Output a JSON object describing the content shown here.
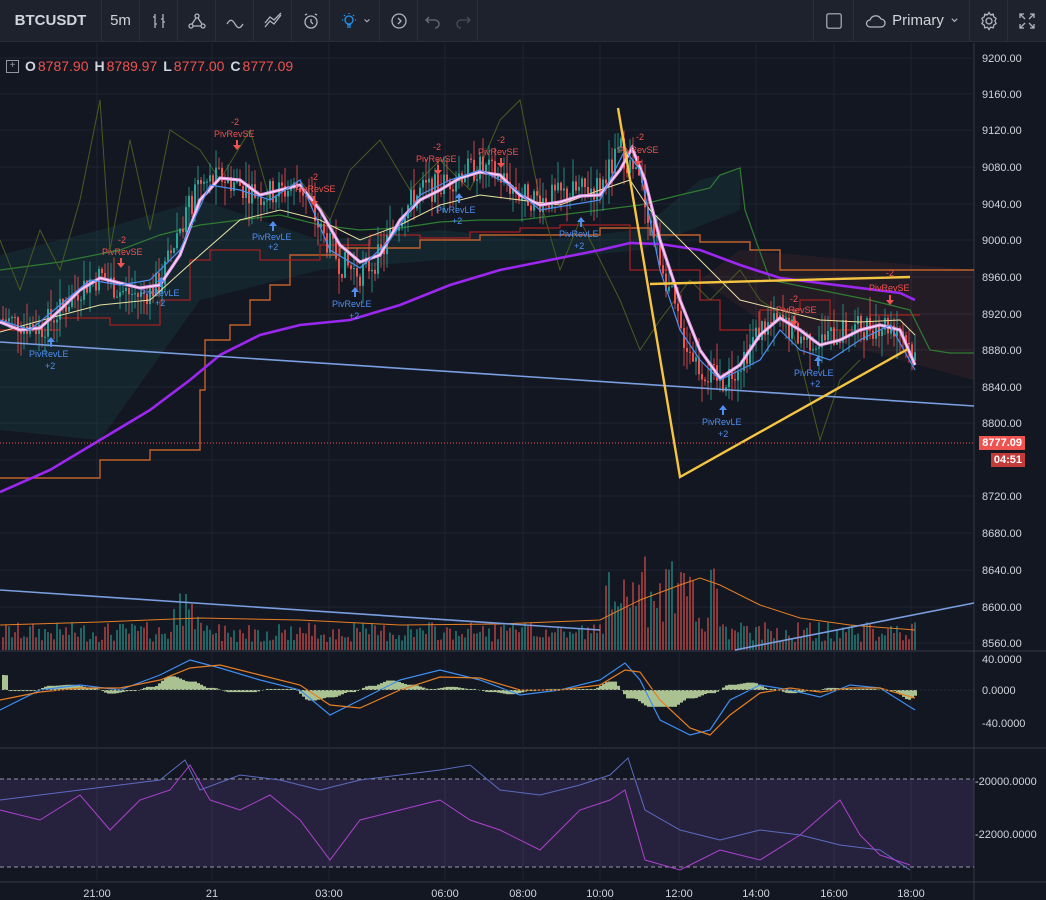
{
  "toolbar": {
    "symbol": "BTCUSDT",
    "interval": "5m",
    "layout_label": "Primary",
    "icons": [
      "compare-icon",
      "bar-style-icon",
      "indicators-icon",
      "templates-icon",
      "alert-icon",
      "ideas-icon",
      "replay-icon",
      "undo-icon",
      "redo-icon",
      "layout-square-icon",
      "cloud-icon",
      "settings-icon",
      "fullscreen-icon"
    ]
  },
  "legend": {
    "o_label": "O",
    "o": "8787.90",
    "h_label": "H",
    "h": "8789.97",
    "l_label": "L",
    "l": "8777.00",
    "c_label": "C",
    "c": "8777.09"
  },
  "last_price": "8777.09",
  "countdown": "04:51",
  "colors": {
    "accent_red": "#ef5350",
    "accent_green": "#26a69a",
    "background": "#131722"
  },
  "chart_data": {
    "type": "line",
    "title": "",
    "price_axis": [
      "9200.00",
      "9160.00",
      "9120.00",
      "9080.00",
      "9040.00",
      "9000.00",
      "8960.00",
      "8920.00",
      "8880.00",
      "8840.00",
      "8800.00",
      "8720.00",
      "8680.00",
      "8640.00",
      "8600.00",
      "8560.00"
    ],
    "macd_axis": [
      "40.0000",
      "0.0000",
      "-40.0000"
    ],
    "osc_axis": [
      "-20000.0000",
      "-22000.0000"
    ],
    "time_axis": [
      "21:00",
      "21",
      "03:00",
      "06:00",
      "08:00",
      "10:00",
      "12:00",
      "14:00",
      "16:00",
      "18:00"
    ],
    "ylim": [
      8540,
      9210
    ],
    "series": [
      {
        "values": [
          [
            0,
            8915
          ],
          [
            20,
            8910
          ],
          [
            40,
            8905
          ],
          [
            60,
            8925
          ],
          [
            80,
            8950
          ],
          [
            100,
            8962
          ],
          [
            120,
            8945
          ],
          [
            140,
            8940
          ],
          [
            160,
            8955
          ],
          [
            180,
            9020
          ],
          [
            200,
            9060
          ],
          [
            220,
            9070
          ],
          [
            240,
            9060
          ],
          [
            260,
            9050
          ],
          [
            280,
            9055
          ],
          [
            300,
            9060
          ],
          [
            320,
            9010
          ],
          [
            340,
            8975
          ],
          [
            360,
            8965
          ],
          [
            380,
            8985
          ],
          [
            400,
            9030
          ],
          [
            420,
            9055
          ],
          [
            440,
            9060
          ],
          [
            460,
            9075
          ],
          [
            480,
            9080
          ],
          [
            500,
            9070
          ],
          [
            520,
            9050
          ],
          [
            540,
            9045
          ],
          [
            560,
            9050
          ],
          [
            580,
            9055
          ],
          [
            600,
            9060
          ],
          [
            620,
            9100
          ],
          [
            640,
            9060
          ],
          [
            660,
            8980
          ],
          [
            680,
            8900
          ],
          [
            700,
            8860
          ],
          [
            720,
            8845
          ],
          [
            740,
            8870
          ],
          [
            760,
            8905
          ],
          [
            780,
            8910
          ],
          [
            800,
            8895
          ],
          [
            820,
            8890
          ],
          [
            840,
            8900
          ],
          [
            860,
            8905
          ],
          [
            880,
            8910
          ],
          [
            900,
            8905
          ],
          [
            915,
            8870
          ]
        ]
      }
    ],
    "annotations": [
      "PivRevSE",
      "PivRevLE",
      "-2",
      "+2"
    ]
  }
}
